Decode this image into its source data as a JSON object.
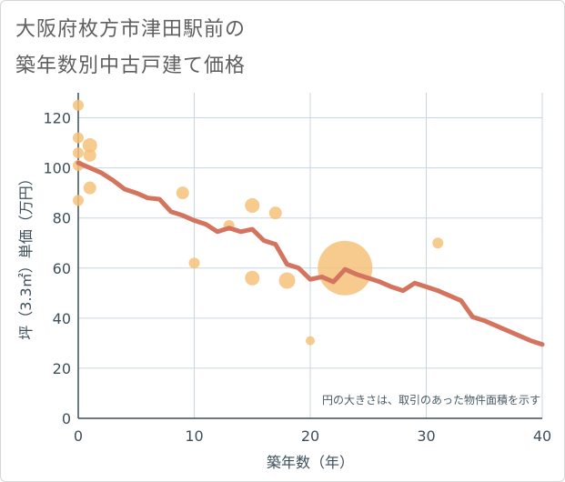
{
  "title": {
    "line1": "大阪府枚方市津田駅前の",
    "line2": "築年数別中古戸建て価格"
  },
  "chart_data": {
    "type": "scatter+line",
    "xlabel": "築年数（年）",
    "ylabel": "坪（3.3㎡）単価（万円）",
    "xlim": [
      0,
      40
    ],
    "ylim": [
      0,
      130
    ],
    "xticks": [
      0,
      10,
      20,
      30,
      40
    ],
    "yticks": [
      0,
      20,
      40,
      60,
      80,
      100,
      120
    ],
    "grid": true,
    "annotation": "円の大きさは、取引のあった物件面積を示す",
    "colors": {
      "line": "#d4735e",
      "bubble": "#f6c27a",
      "grid": "#c8d6e0"
    },
    "trend_line": {
      "x": [
        0,
        1,
        2,
        3,
        4,
        5,
        6,
        7,
        8,
        9,
        10,
        11,
        12,
        13,
        14,
        15,
        16,
        17,
        18,
        19,
        20,
        21,
        22,
        23,
        24,
        25,
        26,
        27,
        28,
        29,
        30,
        31,
        32,
        33,
        34,
        35,
        36,
        37,
        38,
        39,
        40
      ],
      "y": [
        102,
        100,
        98,
        95,
        91.5,
        90,
        88,
        87.5,
        82.5,
        81,
        79,
        77.5,
        74.5,
        76,
        74.5,
        75.5,
        71,
        69.5,
        61.5,
        60,
        55.5,
        56.5,
        54.5,
        59.5,
        57.5,
        56,
        54.5,
        52.5,
        51,
        54,
        52.5,
        51,
        49,
        47,
        40.5,
        39,
        37,
        35,
        33,
        31,
        29.5
      ]
    },
    "bubbles": [
      {
        "x": 0,
        "y": 125,
        "size": 6
      },
      {
        "x": 0,
        "y": 112,
        "size": 6
      },
      {
        "x": 0,
        "y": 106,
        "size": 6
      },
      {
        "x": 0,
        "y": 101,
        "size": 6
      },
      {
        "x": 0,
        "y": 87,
        "size": 6
      },
      {
        "x": 1,
        "y": 109,
        "size": 8
      },
      {
        "x": 1,
        "y": 105,
        "size": 7
      },
      {
        "x": 1,
        "y": 92,
        "size": 7
      },
      {
        "x": 9,
        "y": 90,
        "size": 7
      },
      {
        "x": 10,
        "y": 62,
        "size": 6
      },
      {
        "x": 13,
        "y": 77,
        "size": 6
      },
      {
        "x": 15,
        "y": 85,
        "size": 8
      },
      {
        "x": 15,
        "y": 56,
        "size": 8
      },
      {
        "x": 17,
        "y": 82,
        "size": 7
      },
      {
        "x": 18,
        "y": 55,
        "size": 9
      },
      {
        "x": 20,
        "y": 31,
        "size": 5
      },
      {
        "x": 23,
        "y": 60,
        "size": 30
      },
      {
        "x": 31,
        "y": 70,
        "size": 6
      }
    ]
  }
}
